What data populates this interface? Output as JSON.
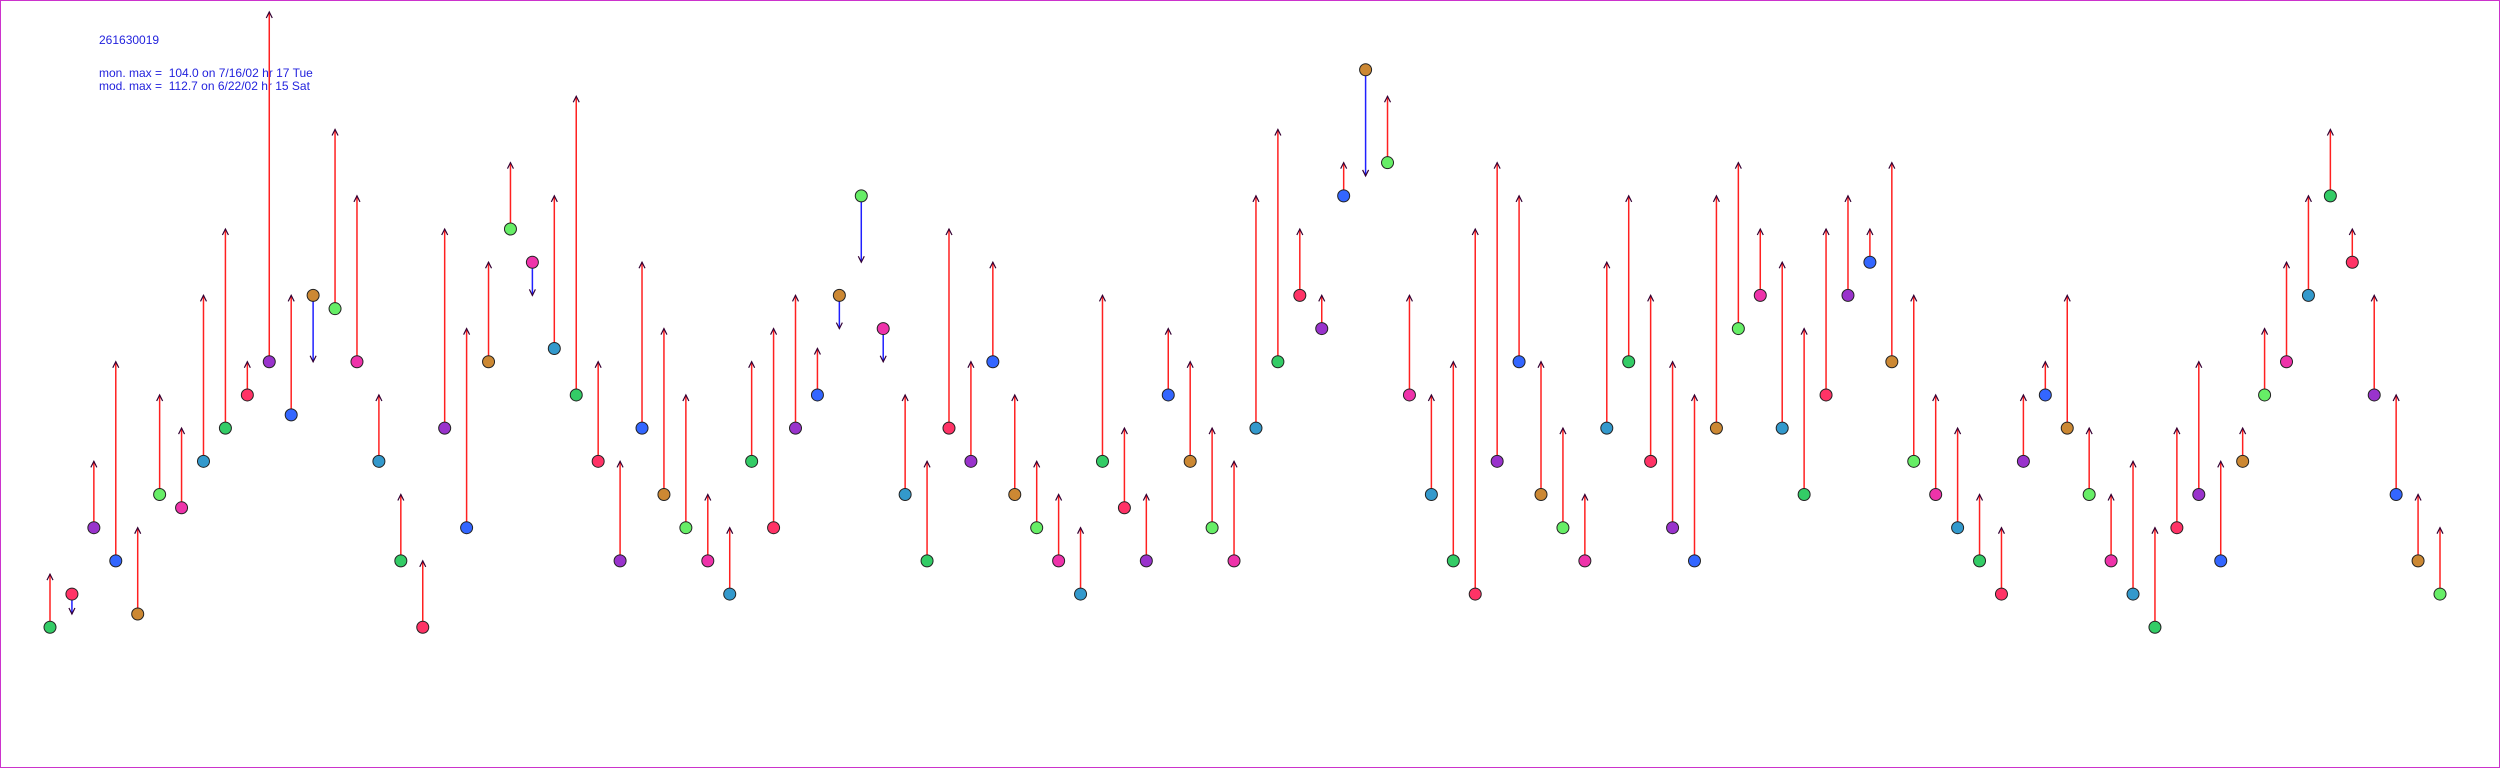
{
  "chart_data": {
    "type": "pairs",
    "title": "261630019",
    "annotations": [
      "mon. max =  104.0 on 7/16/02 hr 17 Tue",
      "mod. max =  112.7 on 6/22/02 hr 15 Sat"
    ],
    "over_color": "#ff2020",
    "under_color": "#2020ff",
    "marker_colors": [
      "#33cc66",
      "#ff3366",
      "#9933cc",
      "#3366ff",
      "#cc8833",
      "#66ee66",
      "#ee33aa",
      "#3399cc"
    ],
    "series": [
      {
        "values": [
          20,
          25,
          35,
          30,
          22,
          40,
          38,
          45,
          50,
          55,
          60,
          52,
          70,
          68,
          60,
          45,
          30,
          20,
          50,
          35,
          60,
          80,
          75,
          62,
          55,
          45,
          30,
          50,
          40,
          35,
          30,
          25,
          45,
          35,
          50,
          55,
          70,
          85,
          65,
          40,
          30,
          50,
          45,
          60,
          40,
          35,
          30,
          25,
          45,
          38,
          30,
          55,
          45,
          35,
          30,
          50,
          60,
          70,
          65,
          85,
          104,
          90,
          55,
          40,
          30,
          25,
          45,
          60,
          40,
          35,
          30,
          50,
          60,
          45,
          35,
          30,
          50,
          65,
          70,
          50,
          40,
          55,
          70,
          75,
          60,
          45,
          40,
          35,
          30,
          25,
          45,
          55,
          50,
          40,
          30,
          25,
          20,
          35,
          40,
          30,
          45,
          55,
          60,
          70,
          85,
          75,
          55,
          40,
          30,
          25
        ]
      },
      {
        "values": [
          28,
          22,
          45,
          60,
          35,
          55,
          50,
          70,
          80,
          60,
          112.7,
          70,
          60,
          95,
          85,
          55,
          40,
          30,
          80,
          65,
          75,
          90,
          70,
          85,
          100,
          60,
          45,
          75,
          65,
          55,
          40,
          35,
          60,
          65,
          70,
          62,
          65,
          75,
          60,
          55,
          45,
          80,
          60,
          75,
          55,
          45,
          40,
          35,
          70,
          50,
          40,
          65,
          60,
          50,
          45,
          85,
          95,
          80,
          70,
          90,
          88,
          100,
          70,
          55,
          60,
          80,
          90,
          85,
          60,
          50,
          40,
          75,
          85,
          70,
          60,
          55,
          85,
          90,
          80,
          75,
          65,
          80,
          85,
          80,
          90,
          70,
          55,
          50,
          40,
          35,
          55,
          60,
          70,
          50,
          40,
          45,
          35,
          50,
          60,
          45,
          50,
          65,
          75,
          85,
          95,
          80,
          70,
          55,
          40,
          35
        ]
      }
    ]
  }
}
